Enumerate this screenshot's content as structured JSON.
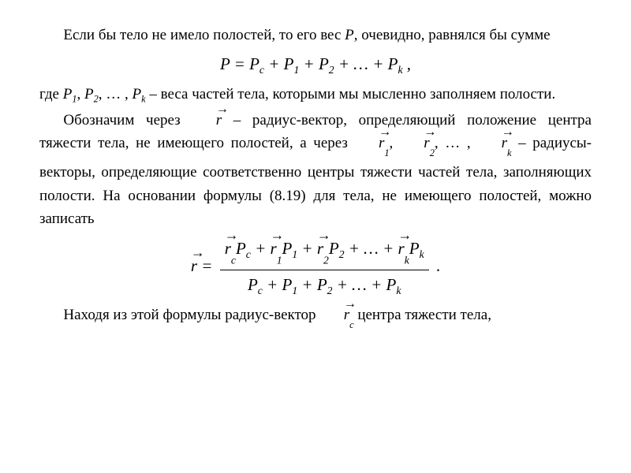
{
  "colors": {
    "text": "#000000",
    "background": "#ffffff"
  },
  "typography": {
    "body_family": "Times New Roman",
    "body_size_pt": 14,
    "eq_size_pt": 16,
    "line_height": 1.55
  },
  "p1_a": "Если бы тело не имело полостей, то его вес ",
  "p1_b": ", очевидно, равнялся бы сумме",
  "symP": "P",
  "eq1_pre": "P = P",
  "eq1_c": "c",
  "eq1_plus": " + P",
  "eq1_1": "1",
  "eq1_2": "2",
  "eq1_dots": " + … + P",
  "eq1_k": "k",
  "eq1_comma": " ,",
  "p2_a": "где ",
  "p2_sep": ", ",
  "p2_dots": ", … , ",
  "p2_b": " – веса частей тела, которыми мы мысленно заполняем полости.",
  "p3_a": "Обозначим через ",
  "sym_r": "r",
  "p3_b": " – радиус-вектор, определяющий положение центра тяжести тела, не имеющего полостей, а через ",
  "p3_c": " – радиусы-векторы, определяющие соответственно центры тяжести частей тела, заполняющих полости. На основании формулы (8.19) для тела, не имеющего полостей, можно записать",
  "eq2_pre": " = ",
  "eq2_dot": " .",
  "p4_a": "Находя из этой формулы радиус-вектор ",
  "p4_b": " центра тяжести тела,",
  "idx_c": "c",
  "idx_1": "1",
  "idx_2": "2",
  "idx_k": "k"
}
